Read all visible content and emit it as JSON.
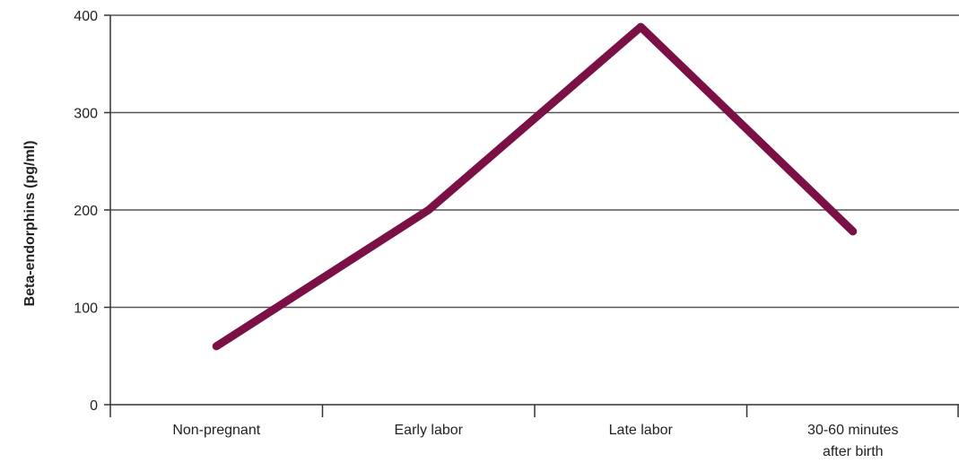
{
  "chart_data": {
    "type": "line",
    "title": "",
    "xlabel": "",
    "ylabel": "Beta-endorphins (pg/ml)",
    "categories": [
      [
        "Non-pregnant"
      ],
      [
        "Early labor"
      ],
      [
        "Late labor"
      ],
      [
        "30-60 minutes",
        "after birth"
      ]
    ],
    "series": [
      {
        "values": [
          60,
          200,
          388,
          178
        ],
        "color": "#7b1044"
      }
    ],
    "ylim": [
      0,
      400
    ],
    "yticks": [
      0,
      100,
      200,
      300,
      400
    ],
    "grid": true,
    "legend": "none"
  }
}
